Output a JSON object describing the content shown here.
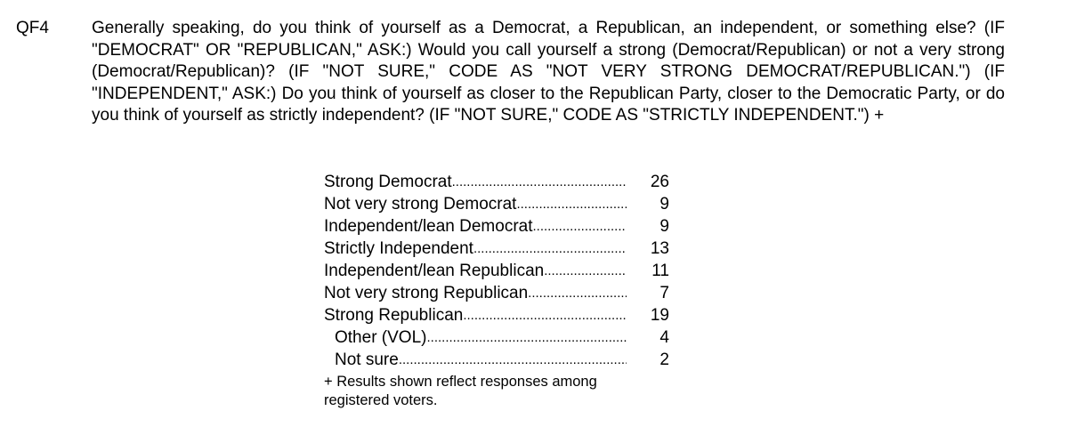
{
  "question": {
    "id": "QF4",
    "text": "Generally speaking, do you think of yourself as a Democrat, a Republican, an independent, or something else? (IF \"DEMOCRAT\" OR \"REPUBLICAN,\" ASK:) Would you call yourself a strong (Democrat/Republican) or not a very strong (Democrat/Republican)? (IF \"NOT SURE,\" CODE AS \"NOT VERY STRONG DEMOCRAT/REPUBLICAN.\")  (IF \"INDEPENDENT,\" ASK:) Do you think of yourself as closer to the Republican Party, closer to the Democratic Party, or do you think of yourself as strictly independent? (IF \"NOT SURE,\" CODE AS \"STRICTLY INDEPENDENT.\") +"
  },
  "results": [
    {
      "label": "Strong Democrat",
      "value": "26",
      "indent": false
    },
    {
      "label": "Not very strong Democrat",
      "value": "9",
      "indent": false
    },
    {
      "label": "Independent/lean Democrat",
      "value": "9",
      "indent": false
    },
    {
      "label": "Strictly Independent",
      "value": "13",
      "indent": false
    },
    {
      "label": "Independent/lean Republican",
      "value": "11",
      "indent": false
    },
    {
      "label": "Not very strong Republican",
      "value": "7",
      "indent": false
    },
    {
      "label": "Strong Republican",
      "value": "19",
      "indent": false
    },
    {
      "label": "Other (VOL)",
      "value": "4",
      "indent": true
    },
    {
      "label": "Not sure",
      "value": "2",
      "indent": true
    }
  ],
  "note": "+ Results shown reflect responses among registered voters."
}
